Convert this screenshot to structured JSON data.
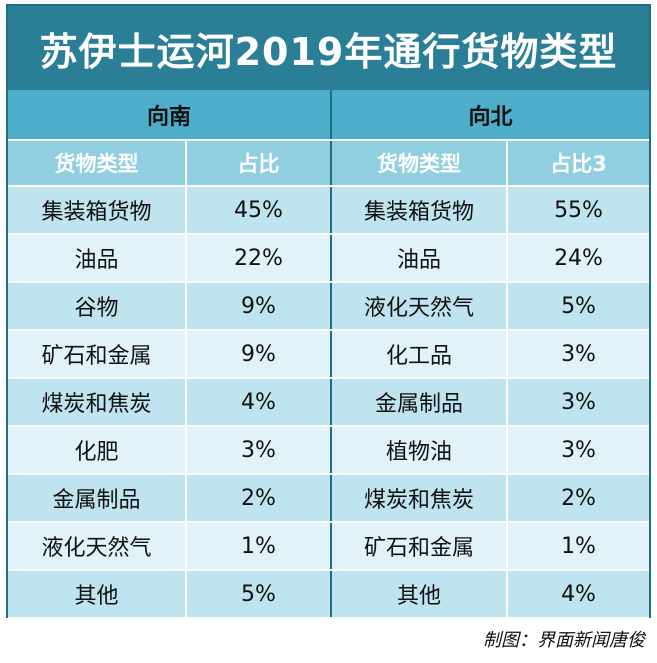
{
  "title": "苏伊士运河2019年通行货物类型",
  "south": {
    "direction": "向南",
    "col_type": "货物类型",
    "col_share": "占比",
    "rows": [
      {
        "type": "集装箱货物",
        "share": "45%"
      },
      {
        "type": "油品",
        "share": "22%"
      },
      {
        "type": "谷物",
        "share": "9%"
      },
      {
        "type": "矿石和金属",
        "share": "9%"
      },
      {
        "type": "煤炭和焦炭",
        "share": "4%"
      },
      {
        "type": "化肥",
        "share": "3%"
      },
      {
        "type": "金属制品",
        "share": "2%"
      },
      {
        "type": "液化天然气",
        "share": "1%"
      },
      {
        "type": "其他",
        "share": "5%"
      }
    ]
  },
  "north": {
    "direction": "向北",
    "col_type": "货物类型",
    "col_share": "占比3",
    "rows": [
      {
        "type": "集装箱货物",
        "share": "55%"
      },
      {
        "type": "油品",
        "share": "24%"
      },
      {
        "type": "液化天然气",
        "share": "5%"
      },
      {
        "type": "化工品",
        "share": "3%"
      },
      {
        "type": "金属制品",
        "share": "3%"
      },
      {
        "type": "植物油",
        "share": "3%"
      },
      {
        "type": "煤炭和焦炭",
        "share": "2%"
      },
      {
        "type": "矿石和金属",
        "share": "1%"
      },
      {
        "type": "其他",
        "share": "4%"
      }
    ]
  },
  "credit": "制图：界面新闻唐俊",
  "colors": {
    "title_bg": "#2a7f97",
    "direction_bg": "#4eaec9",
    "column_header_bg": "#8fcfe0",
    "row_dark": "#bfe3ef",
    "row_light": "#e1f2f8"
  }
}
